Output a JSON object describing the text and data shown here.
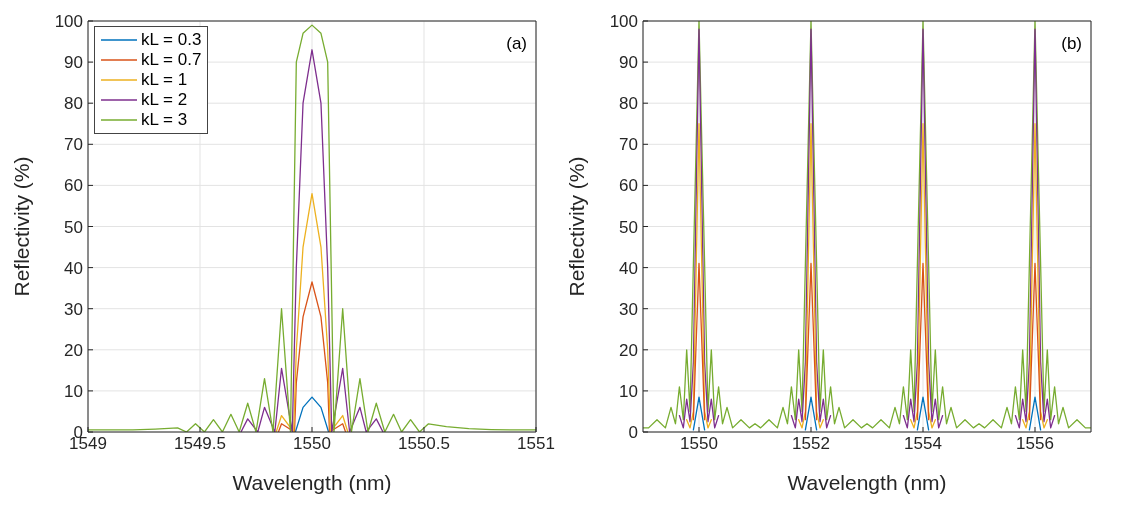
{
  "chart_data": [
    {
      "type": "line",
      "xlabel": "Wavelength (nm)",
      "ylabel": "Reflectivity (%)",
      "annotations": [
        "(a)"
      ],
      "xlim": [
        1549,
        1551
      ],
      "xticks": [
        1549,
        1549.5,
        1550,
        1550.5,
        1551
      ],
      "ylim": [
        0,
        100
      ],
      "yticks": [
        0,
        10,
        20,
        30,
        40,
        50,
        60,
        70,
        80,
        90,
        100
      ],
      "grid": true,
      "legend": "top left",
      "marker": "none",
      "x": [
        1549,
        1549.1,
        1549.2,
        1549.3,
        1549.4,
        1549.44,
        1549.48,
        1549.52,
        1549.56,
        1549.6,
        1549.638,
        1549.675,
        1549.713,
        1549.75,
        1549.788,
        1549.826,
        1549.864,
        1549.904,
        1549.93,
        1549.96,
        1550,
        1550.04,
        1550.07,
        1550.098,
        1550.137,
        1550.176,
        1550.214,
        1550.25,
        1550.287,
        1550.325,
        1550.364,
        1550.4,
        1550.44,
        1550.48,
        1550.52,
        1550.6,
        1550.7,
        1550.8,
        1550.9,
        1551
      ],
      "series": [
        {
          "name": "kL = 0.3",
          "color": "#0072bd",
          "x": [
            1549.926,
            1549.96,
            1550,
            1550.04,
            1550.074
          ],
          "values": [
            0,
            6,
            8.5,
            6,
            0
          ]
        },
        {
          "name": "kL = 0.7",
          "color": "#d95319",
          "x": [
            1549.85,
            1549.864,
            1549.922,
            1549.93,
            1549.96,
            1550,
            1550.04,
            1550.07,
            1550.078,
            1550.137,
            1550.15
          ],
          "values": [
            0,
            2,
            0,
            12,
            28,
            36.5,
            28,
            12,
            0,
            2,
            0
          ]
        },
        {
          "name": "kL = 1",
          "color": "#edb120",
          "x": [
            1549.84,
            1549.864,
            1549.918,
            1549.93,
            1549.96,
            1550,
            1550.04,
            1550.07,
            1550.082,
            1550.137,
            1550.16
          ],
          "values": [
            0,
            4,
            0,
            20,
            45,
            58,
            45,
            20,
            0,
            4,
            0
          ]
        },
        {
          "name": "kL = 2",
          "color": "#7e2f8e",
          "x": [
            1549.683,
            1549.713,
            1549.758,
            1549.788,
            1549.834,
            1549.864,
            1549.912,
            1549.93,
            1549.96,
            1550,
            1550.04,
            1550.07,
            1550.088,
            1550.137,
            1550.168,
            1550.214,
            1550.242,
            1550.287,
            1550.317
          ],
          "values": [
            0,
            3.2,
            0,
            6,
            0,
            15.5,
            0,
            40,
            80,
            93,
            80,
            40,
            0,
            15.5,
            0,
            6,
            0,
            3.2,
            0
          ]
        },
        {
          "name": "kL = 3",
          "color": "#77ac30",
          "values": [
            0.5,
            0.5,
            0.5,
            0.7,
            1,
            0,
            2,
            0,
            3,
            0,
            4.3,
            0,
            7,
            0,
            13,
            0,
            30,
            0,
            90,
            97,
            99,
            97,
            90,
            0,
            30,
            0,
            13,
            0,
            7,
            0,
            4.3,
            0,
            3,
            0,
            2,
            1.3,
            0.8,
            0.6,
            0.5,
            0.5
          ]
        }
      ]
    },
    {
      "type": "line",
      "xlabel": "Wavelength (nm)",
      "ylabel": "Reflectivity (%)",
      "annotations": [
        "(b)"
      ],
      "xlim": [
        1549,
        1557
      ],
      "xticks": [
        1550,
        1552,
        1554,
        1556
      ],
      "ylim": [
        0,
        100
      ],
      "yticks": [
        0,
        10,
        20,
        30,
        40,
        50,
        60,
        70,
        80,
        90,
        100
      ],
      "grid": true,
      "marker": "none",
      "x": [
        1549,
        1549.1,
        1549.25,
        1549.4,
        1549.5,
        1549.58,
        1549.65,
        1549.72,
        1549.78,
        1549.84,
        1549.9,
        1550,
        1550.1,
        1550.16,
        1550.22,
        1550.28,
        1550.35,
        1550.42,
        1550.5,
        1550.6,
        1550.75,
        1550.9,
        1551,
        1551.1,
        1551.25,
        1551.4,
        1551.5,
        1551.58,
        1551.65,
        1551.72,
        1551.78,
        1551.84,
        1551.9,
        1552,
        1552.1,
        1552.16,
        1552.22,
        1552.28,
        1552.35,
        1552.42,
        1552.5,
        1552.6,
        1552.75,
        1552.9,
        1553,
        1553.1,
        1553.25,
        1553.4,
        1553.5,
        1553.58,
        1553.65,
        1553.72,
        1553.78,
        1553.84,
        1553.9,
        1554,
        1554.1,
        1554.16,
        1554.22,
        1554.28,
        1554.35,
        1554.42,
        1554.5,
        1554.6,
        1554.75,
        1554.9,
        1555,
        1555.1,
        1555.25,
        1555.4,
        1555.5,
        1555.58,
        1555.65,
        1555.72,
        1555.78,
        1555.84,
        1555.9,
        1556,
        1556.1,
        1556.16,
        1556.22,
        1556.28,
        1556.35,
        1556.42,
        1556.5,
        1556.6,
        1556.75,
        1556.9,
        1557
      ],
      "series": [
        {
          "color": "#77ac30",
          "values": [
            1,
            1,
            3,
            1,
            6,
            2,
            11,
            3,
            20,
            5,
            41,
            100,
            41,
            5,
            20,
            3,
            11,
            2,
            6,
            1,
            3,
            1,
            2,
            1,
            3,
            1,
            6,
            2,
            11,
            3,
            20,
            5,
            41,
            100,
            41,
            5,
            20,
            3,
            11,
            2,
            6,
            1,
            3,
            1,
            2,
            1,
            3,
            1,
            6,
            2,
            11,
            3,
            20,
            5,
            41,
            100,
            41,
            5,
            20,
            3,
            11,
            2,
            6,
            1,
            3,
            1,
            2,
            1,
            3,
            1,
            6,
            2,
            11,
            3,
            20,
            5,
            41,
            100,
            41,
            5,
            20,
            3,
            11,
            2,
            6,
            1,
            3,
            1,
            1
          ]
        },
        {
          "color": "#7e2f8e",
          "x": [
            1549.65,
            1549.72,
            1549.78,
            1549.84,
            1549.9,
            1550,
            1550.1,
            1550.16,
            1550.22,
            1550.28,
            1550.35,
            1551,
            1551.65,
            1551.72,
            1551.78,
            1551.84,
            1551.9,
            1552,
            1552.1,
            1552.16,
            1552.22,
            1552.28,
            1552.35,
            1553,
            1553.65,
            1553.72,
            1553.78,
            1553.84,
            1553.9,
            1554,
            1554.1,
            1554.16,
            1554.22,
            1554.28,
            1554.35,
            1555,
            1555.65,
            1555.72,
            1555.78,
            1555.84,
            1555.9,
            1556,
            1556.1,
            1556.16,
            1556.22,
            1556.28,
            1556.35
          ],
          "values": [
            4,
            1,
            8,
            2.5,
            17,
            98,
            17,
            2.5,
            8,
            1,
            4,
            null,
            4,
            1,
            8,
            2.5,
            17,
            98,
            17,
            2.5,
            8,
            1,
            4,
            null,
            4,
            1,
            8,
            2.5,
            17,
            98,
            17,
            2.5,
            8,
            1,
            4,
            null,
            4,
            1,
            8,
            2.5,
            17,
            98,
            17,
            2.5,
            8,
            1,
            4
          ]
        },
        {
          "color": "#edb120",
          "x": [
            1549.78,
            1549.84,
            1549.9,
            1550,
            1550.1,
            1550.16,
            1550.22,
            1551,
            1551.78,
            1551.84,
            1551.9,
            1552,
            1552.1,
            1552.16,
            1552.22,
            1553,
            1553.78,
            1553.84,
            1553.9,
            1554,
            1554.1,
            1554.16,
            1554.22,
            1555,
            1555.78,
            1555.84,
            1555.9,
            1556,
            1556.1,
            1556.16,
            1556.22
          ],
          "values": [
            3,
            1,
            5,
            75,
            5,
            1,
            3,
            null,
            3,
            1,
            5,
            75,
            5,
            1,
            3,
            null,
            3,
            1,
            5,
            75,
            5,
            1,
            3,
            null,
            3,
            1,
            5,
            75,
            5,
            1,
            3
          ]
        },
        {
          "color": "#d95319",
          "x": [
            1549.9,
            1550,
            1550.1,
            1551,
            1551.9,
            1552,
            1552.1,
            1553,
            1553.9,
            1554,
            1554.1,
            1555,
            1555.9,
            1556,
            1556.1
          ],
          "values": [
            3,
            41,
            3,
            null,
            3,
            41,
            3,
            null,
            3,
            41,
            3,
            null,
            3,
            41,
            3
          ]
        },
        {
          "color": "#0072bd",
          "x": [
            1549.9,
            1550,
            1550.1,
            1551,
            1551.9,
            1552,
            1552.1,
            1553,
            1553.9,
            1554,
            1554.1,
            1555,
            1555.9,
            1556,
            1556.1
          ],
          "values": [
            0.5,
            8.5,
            0.5,
            null,
            0.5,
            8.5,
            0.5,
            null,
            0.5,
            8.5,
            0.5,
            null,
            0.5,
            8.5,
            0.5
          ]
        }
      ]
    }
  ]
}
